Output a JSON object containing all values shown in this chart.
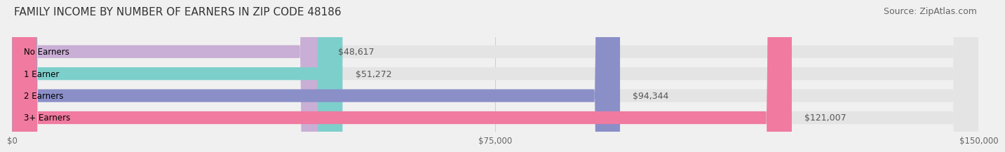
{
  "title": "FAMILY INCOME BY NUMBER OF EARNERS IN ZIP CODE 48186",
  "source": "Source: ZipAtlas.com",
  "categories": [
    "No Earners",
    "1 Earner",
    "2 Earners",
    "3+ Earners"
  ],
  "values": [
    48617,
    51272,
    94344,
    121007
  ],
  "bar_colors": [
    "#c9aed6",
    "#7dcfcc",
    "#8a8fc8",
    "#f07aa0"
  ],
  "bar_labels": [
    "$48,617",
    "$51,272",
    "$94,344",
    "$121,007"
  ],
  "xlim": [
    0,
    150000
  ],
  "xticks": [
    0,
    75000,
    150000
  ],
  "xtick_labels": [
    "$0",
    "$75,000",
    "$150,000"
  ],
  "background_color": "#f0f0f0",
  "bar_bg_color": "#e4e4e4",
  "title_fontsize": 11,
  "source_fontsize": 9,
  "label_fontsize": 9,
  "category_fontsize": 8.5
}
